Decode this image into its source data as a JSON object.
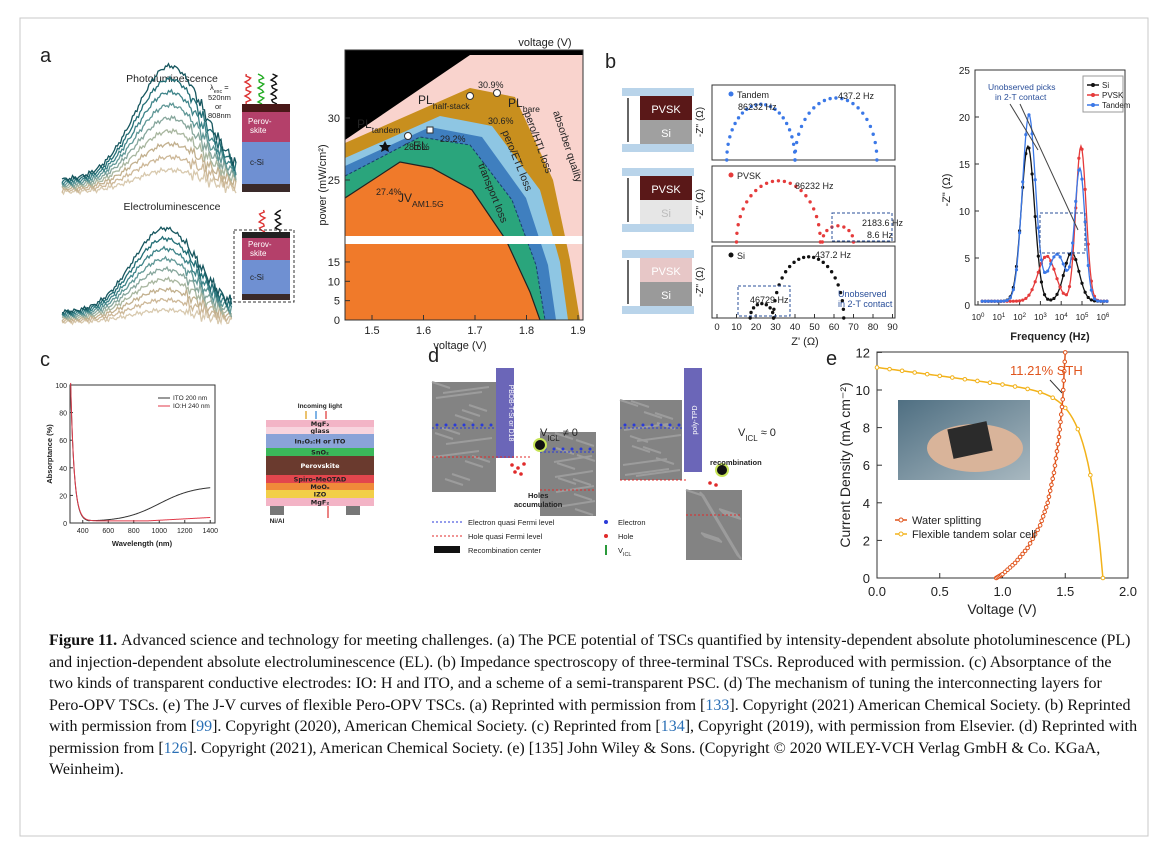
{
  "figure": {
    "a": {
      "label": "a",
      "pl_title": "Photoluminescence",
      "el_title": "Electroluminescence",
      "excitation": [
        "λ",
        "exc",
        " =",
        "520nm",
        "or",
        "808nm"
      ],
      "pl_layers": {
        "perovskite": [
          "Perov-",
          "skite"
        ],
        "si": "c-Si"
      },
      "el_layers": {
        "perovskite": [
          "Perov-",
          "skite"
        ],
        "si": "c-Si"
      },
      "x_title_top": "voltage (V)",
      "x_title": "voltage (V)",
      "y_title": "power (mW/cm²)",
      "y_ticks_upper": [
        25,
        30
      ],
      "y_ticks_lower": [
        0,
        5,
        10,
        15
      ],
      "x_ticks": [
        1.5,
        1.6,
        1.7,
        1.8,
        1.9
      ],
      "pl_half_stack": [
        "PL",
        "half-stack"
      ],
      "pl_bare": [
        "PL",
        "bare"
      ],
      "pl_tandem": [
        "PL",
        "tandem"
      ],
      "el": "EL",
      "jv": [
        "JV",
        "AM1.5G"
      ],
      "efficiencies": [
        "30.9%",
        "30.6%",
        "29.2%",
        "28.6%",
        "27.4%"
      ],
      "losses": [
        "transport loss",
        "pero/ETL loss",
        "pero/HTL loss",
        "absorber quality"
      ]
    },
    "b": {
      "label": "b",
      "stacks": [
        [
          "PVSK",
          "Si"
        ],
        [
          "PVSK",
          "Si"
        ],
        [
          "PVSK",
          "Si"
        ]
      ],
      "y_title": "-Z'' (Ω)",
      "x_title": "Z' (Ω)",
      "x_ticks": [
        0,
        10,
        20,
        30,
        40,
        50,
        60,
        70,
        80,
        90
      ],
      "tandem": {
        "name": "Tandem",
        "freqs": [
          "86232 Hz",
          "437.2 Hz"
        ]
      },
      "pvsk": {
        "name": "PVSK",
        "freqs": [
          "86232 Hz",
          "2183.6 Hz",
          "8.6 Hz"
        ]
      },
      "si": {
        "name": "Si",
        "freqs": [
          "437.2 Hz",
          "46729 Hz"
        ],
        "note": [
          "Unobserved",
          "in 2-T contact"
        ]
      },
      "bode": {
        "y_ticks": [
          0,
          5,
          10,
          15,
          20,
          25
        ],
        "x_tick_base": "10",
        "x_tick_exps": [
          "0",
          "1",
          "2",
          "3",
          "4",
          "5",
          "6"
        ],
        "x_title": "Frequency (Hz)",
        "y_title": "-Z\" (Ω)",
        "legend": [
          "Si",
          "PVSK",
          "Tandem"
        ],
        "note": [
          "Unobserved picks",
          "in 2-T contact"
        ]
      }
    },
    "c": {
      "label": "c",
      "y_title": "Absorptance (%)",
      "x_title": "Wavelength (nm)",
      "y_ticks": [
        0,
        20,
        40,
        60,
        80,
        100
      ],
      "x_ticks": [
        400,
        600,
        800,
        1000,
        1200,
        1400
      ],
      "legend": [
        "ITO 200 nm",
        "IO:H 240 nm"
      ],
      "stack": {
        "light": "Incoming light",
        "layers": [
          "MgF₂",
          "glass",
          "In₂O₃:H or ITO",
          "SnO₂",
          "Perovskite",
          "Spiro-MeOTAD",
          "MoOₓ",
          "IZO",
          "MgF₂"
        ],
        "contact": "Ni/Al"
      }
    },
    "d": {
      "label": "d",
      "left": {
        "donor": "PBDB-T-Si or D18",
        "voltage": [
          "V",
          "ICL",
          " ≠ 0"
        ],
        "note": [
          "Holes",
          "accumulation"
        ]
      },
      "right": {
        "donor": "poly-TPD",
        "voltage": [
          "V",
          "ICL",
          " ≈ 0"
        ],
        "note": "recombination"
      },
      "legend": {
        "electron_level": "Electron quasi Fermi level",
        "hole_level": "Hole quasi Fermi level",
        "center": "Recombination center",
        "electron": "Electron",
        "hole": "Hole",
        "v_icl": [
          "V",
          "ICL"
        ]
      }
    },
    "e": {
      "label": "e",
      "y_title": "Current Density (mA cm⁻²)",
      "x_title": "Voltage (V)",
      "y_ticks": [
        0,
        2,
        4,
        6,
        8,
        10,
        12
      ],
      "x_ticks": [
        "0.0",
        "0.5",
        "1.0",
        "1.5",
        "2.0"
      ],
      "annotation": "11.21% STH",
      "legend": [
        "Water splitting",
        "Flexible tandem solar cell"
      ]
    }
  },
  "caption": {
    "label": "Figure 11.",
    "segments": [
      "Advanced science and technology for meeting challenges. (a) The PCE potential of TSCs quantified by intensity-dependent absolute photoluminescence (PL) and injection-dependent absolute electroluminescence (EL). (b) Impedance spectroscopy of three-terminal TSCs. Reproduced with permission. (c) Absorptance of the two kinds of transparent conductive electrodes: IO: H and ITO, and a scheme of a semi-transparent PSC. (d) The mechanism of tuning the interconnecting layers for Pero-OPV TSCs. (e) The J-V curves of flexible Pero-OPV TSCs. (a) Reprinted with permission from [",
      {
        "ref": "133"
      },
      "]. Copyright (2021) American Chemical Society. (b) Reprinted with permission from [",
      {
        "ref": "99"
      },
      "]. Copyright (2020), American Chemical Society. (c) Reprinted from [",
      {
        "ref": "134"
      },
      "], Copyright (2019), with permission from Elsevier. (d) Reprinted with permission from [",
      {
        "ref": "126"
      },
      "]. Copyright (2021), American Chemical Society. (e) [135] John Wiley & Sons. (Copyright © 2020 WILEY-VCH Verlag GmbH & Co. KGaA, Weinheim)."
    ]
  }
}
